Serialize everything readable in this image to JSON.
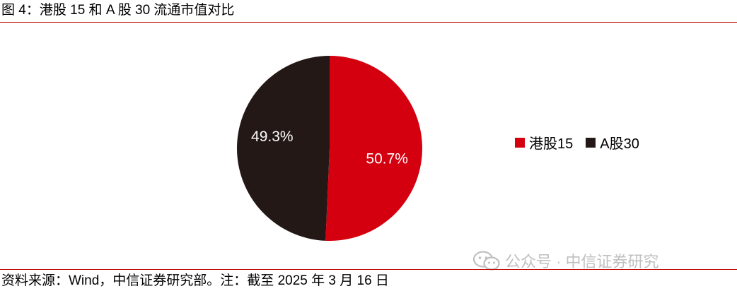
{
  "title": "图 4：港股 15 和 A 股 30 流通市值对比",
  "source": "资料来源：Wind，中信证券研究部。注：截至 2025 年 3 月 16 日",
  "watermark": "公众号 · 中信证券研究",
  "colors": {
    "rule": "#c00000",
    "hk": "#d5000f",
    "a": "#231815"
  },
  "chart_data": {
    "type": "pie",
    "title": "",
    "slices": [
      {
        "label": "港股15",
        "value": 50.7,
        "display": "50.7%",
        "color": "#d5000f"
      },
      {
        "label": "A股30",
        "value": 49.3,
        "display": "49.3%",
        "color": "#231815"
      }
    ],
    "start_angle": "12 o'clock",
    "direction": "clockwise",
    "legend_position": "right"
  }
}
